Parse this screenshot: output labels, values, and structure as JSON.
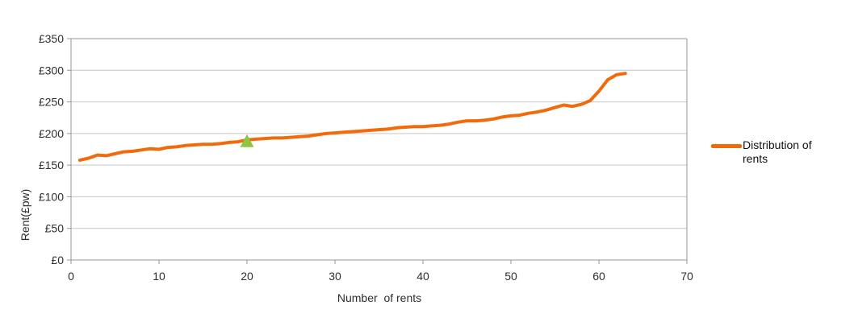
{
  "chart": {
    "colors": {
      "series_orange": "#F26A0A",
      "marker_green": "#8DC63F",
      "gridline": "#C6C6C6",
      "axis": "#969696",
      "tick_text": "#2E2E2E"
    },
    "y_axis": {
      "title": "Rent(£pw)",
      "tick_labels": [
        "£0",
        "£50",
        "£100",
        "£150",
        "£200",
        "£250",
        "£300",
        "£350"
      ]
    },
    "x_axis": {
      "title": "Number  of rents",
      "tick_labels": [
        "0",
        "10",
        "20",
        "30",
        "40",
        "50",
        "60",
        "70"
      ]
    },
    "legend": {
      "label": "Distribution of\nrents"
    }
  },
  "chart_data": {
    "type": "line",
    "title": "",
    "xlabel": "Number of rents",
    "ylabel": "Rent(£pw)",
    "xlim": [
      0,
      70
    ],
    "ylim": [
      0,
      350
    ],
    "x_tick_step": 10,
    "y_tick_step": 50,
    "grid": true,
    "legend_position": "right",
    "series": [
      {
        "name": "Distribution of rents",
        "color": "#F26A0A",
        "x": [
          1,
          2,
          3,
          4,
          5,
          6,
          7,
          8,
          9,
          10,
          11,
          12,
          13,
          14,
          15,
          16,
          17,
          18,
          19,
          20,
          21,
          22,
          23,
          24,
          25,
          26,
          27,
          28,
          29,
          30,
          31,
          32,
          33,
          34,
          35,
          36,
          37,
          38,
          39,
          40,
          41,
          42,
          43,
          44,
          45,
          46,
          47,
          48,
          49,
          50,
          51,
          52,
          53,
          54,
          55,
          56,
          57,
          58,
          59,
          60,
          61,
          62,
          63
        ],
        "values": [
          158,
          161,
          166,
          165,
          168,
          171,
          172,
          174,
          176,
          175,
          178,
          179,
          181,
          182,
          183,
          183,
          184,
          186,
          187,
          190,
          191,
          192,
          193,
          193,
          194,
          195,
          196,
          198,
          200,
          201,
          202,
          203,
          204,
          205,
          206,
          207,
          209,
          210,
          211,
          211,
          212,
          213,
          215,
          218,
          220,
          220,
          221,
          223,
          226,
          228,
          229,
          232,
          234,
          237,
          241,
          245,
          243,
          246,
          252,
          267,
          285,
          293,
          295
        ]
      }
    ],
    "highlight_marker": {
      "shape": "triangle",
      "color": "#8DC63F",
      "x": 20,
      "value": 188
    }
  }
}
